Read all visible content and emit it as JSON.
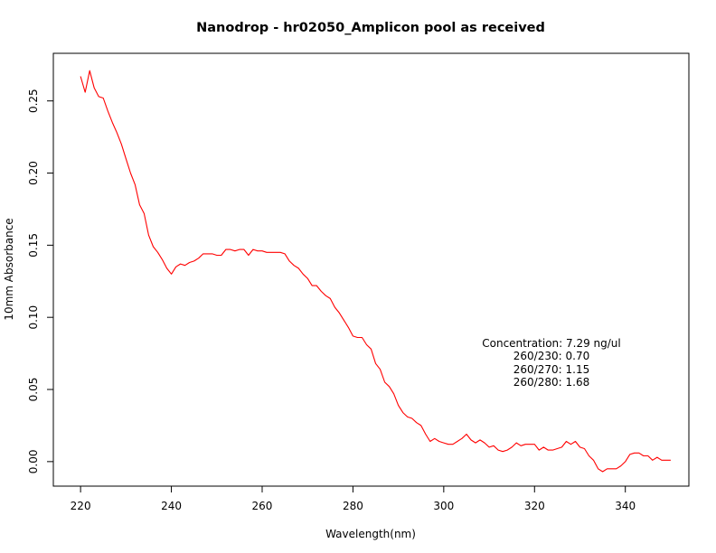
{
  "chart_data": {
    "type": "line",
    "title": "Nanodrop - hr02050_Amplicon pool as received",
    "xlabel": "Wavelength(nm)",
    "ylabel": "10mm Absorbance",
    "xlim": [
      214,
      354
    ],
    "ylim": [
      -0.017,
      0.283
    ],
    "xticks": [
      220,
      240,
      260,
      280,
      300,
      320,
      340
    ],
    "yticks": [
      0.0,
      0.05,
      0.1,
      0.15,
      0.2,
      0.25
    ],
    "ytick_labels": [
      "0.00",
      "0.05",
      "0.10",
      "0.15",
      "0.20",
      "0.25"
    ],
    "grid": false,
    "line_color": "#ff0000",
    "series": [
      {
        "x": [
          220,
          221,
          222,
          223,
          224,
          225,
          226,
          227,
          228,
          229,
          230,
          231,
          232,
          233,
          234,
          235,
          236,
          237,
          238,
          239,
          240,
          241,
          242,
          243,
          244,
          245,
          246,
          247,
          248,
          249,
          250,
          251,
          252,
          253,
          254,
          255,
          256,
          257,
          258,
          259,
          260,
          261,
          262,
          263,
          264,
          265,
          266,
          267,
          268,
          269,
          270,
          271,
          272,
          273,
          274,
          275,
          276,
          277,
          278,
          279,
          280,
          281,
          282,
          283,
          284,
          285,
          286,
          287,
          288,
          289,
          290,
          291,
          292,
          293,
          294,
          295,
          296,
          297,
          298,
          299,
          300,
          301,
          302,
          303,
          304,
          305,
          306,
          307,
          308,
          309,
          310,
          311,
          312,
          313,
          314,
          315,
          316,
          317,
          318,
          319,
          320,
          321,
          322,
          323,
          324,
          325,
          326,
          327,
          328,
          329,
          330,
          331,
          332,
          333,
          334,
          335,
          336,
          337,
          338,
          339,
          340,
          341,
          342,
          343,
          344,
          345,
          346,
          347,
          348,
          349,
          350
        ],
        "y": [
          0.267,
          0.256,
          0.271,
          0.259,
          0.253,
          0.252,
          0.243,
          0.235,
          0.228,
          0.22,
          0.21,
          0.2,
          0.192,
          0.178,
          0.172,
          0.157,
          0.149,
          0.145,
          0.14,
          0.134,
          0.13,
          0.135,
          0.137,
          0.136,
          0.138,
          0.139,
          0.141,
          0.144,
          0.144,
          0.144,
          0.143,
          0.143,
          0.147,
          0.147,
          0.146,
          0.147,
          0.147,
          0.143,
          0.147,
          0.146,
          0.146,
          0.145,
          0.145,
          0.145,
          0.145,
          0.144,
          0.139,
          0.136,
          0.134,
          0.13,
          0.127,
          0.122,
          0.122,
          0.118,
          0.115,
          0.113,
          0.107,
          0.103,
          0.098,
          0.093,
          0.087,
          0.086,
          0.086,
          0.081,
          0.078,
          0.068,
          0.064,
          0.055,
          0.052,
          0.047,
          0.039,
          0.034,
          0.031,
          0.03,
          0.027,
          0.025,
          0.019,
          0.014,
          0.016,
          0.014,
          0.013,
          0.012,
          0.012,
          0.014,
          0.016,
          0.019,
          0.015,
          0.013,
          0.015,
          0.013,
          0.01,
          0.011,
          0.008,
          0.007,
          0.008,
          0.01,
          0.013,
          0.011,
          0.012,
          0.012,
          0.012,
          0.008,
          0.01,
          0.008,
          0.008,
          0.009,
          0.01,
          0.014,
          0.012,
          0.014,
          0.01,
          0.009,
          0.004,
          0.001,
          -0.005,
          -0.007,
          -0.005,
          -0.005,
          -0.005,
          -0.003,
          0.0,
          0.005,
          0.006,
          0.006,
          0.004,
          0.004,
          0.001,
          0.003,
          0.001,
          0.001,
          0.001
        ]
      }
    ],
    "annotations": {
      "concentration": "Concentration: 7.29 ng/ul",
      "ratio_260_230": "260/230: 0.70",
      "ratio_260_270": "260/270: 1.15",
      "ratio_260_280": "260/280: 1.68"
    }
  }
}
